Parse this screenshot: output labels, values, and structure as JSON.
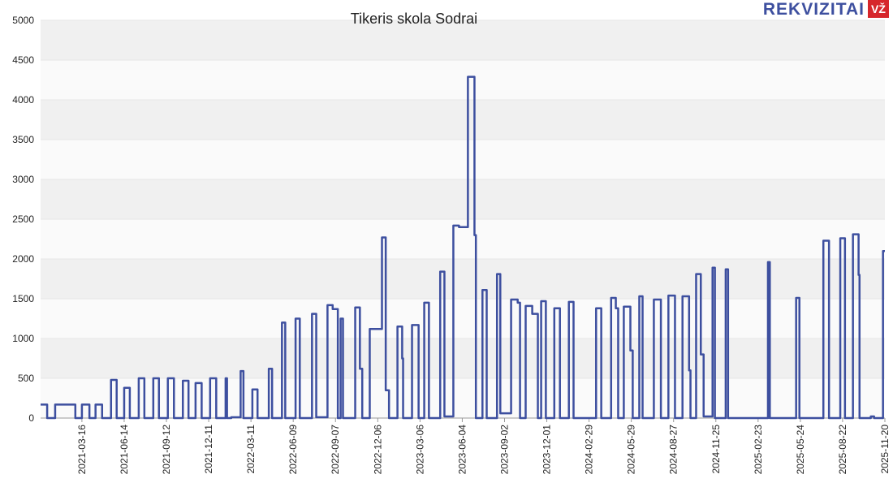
{
  "chart_data": {
    "type": "line",
    "title": "Tikeris skola Sodrai",
    "logo": "REKVIZITAI",
    "logo_badge": "VŽ",
    "x": [
      "2020-12-18",
      "2021-01-01",
      "2021-01-18",
      "2021-03-02",
      "2021-03-16",
      "2021-04-01",
      "2021-04-14",
      "2021-04-28",
      "2021-05-17",
      "2021-05-29",
      "2021-06-14",
      "2021-06-26",
      "2021-07-15",
      "2021-07-27",
      "2021-08-15",
      "2021-08-27",
      "2021-09-15",
      "2021-09-28",
      "2021-10-17",
      "2021-10-29",
      "2021-11-13",
      "2021-11-26",
      "2021-12-14",
      "2021-12-27",
      "2022-01-16",
      "2022-01-19",
      "2022-01-28",
      "2022-02-17",
      "2022-02-23",
      "2022-03-14",
      "2022-03-25",
      "2022-04-18",
      "2022-04-25",
      "2022-05-16",
      "2022-05-23",
      "2022-06-14",
      "2022-06-23",
      "2022-07-19",
      "2022-07-28",
      "2022-08-21",
      "2022-09-01",
      "2022-09-12",
      "2022-09-18",
      "2022-09-23",
      "2022-10-19",
      "2022-10-29",
      "2022-11-03",
      "2022-11-19",
      "2022-12-15",
      "2022-12-23",
      "2022-12-30",
      "2023-01-17",
      "2023-01-27",
      "2023-01-29",
      "2023-02-17",
      "2023-03-03",
      "2023-03-15",
      "2023-03-25",
      "2023-04-18",
      "2023-04-27",
      "2023-05-16",
      "2023-05-28",
      "2023-06-16",
      "2023-06-30",
      "2023-07-03",
      "2023-07-17",
      "2023-07-26",
      "2023-08-17",
      "2023-08-24",
      "2023-09-16",
      "2023-09-30",
      "2023-10-05",
      "2023-10-17",
      "2023-10-31",
      "2023-11-12",
      "2023-11-19",
      "2023-11-29",
      "2023-12-17",
      "2023-12-29",
      "2024-01-17",
      "2024-01-27",
      "2024-03-15",
      "2024-03-26",
      "2024-04-16",
      "2024-04-26",
      "2024-05-01",
      "2024-05-13",
      "2024-05-27",
      "2024-06-01",
      "2024-06-15",
      "2024-06-22",
      "2024-07-16",
      "2024-07-31",
      "2024-08-16",
      "2024-08-30",
      "2024-09-15",
      "2024-09-29",
      "2024-10-02",
      "2024-10-14",
      "2024-10-24",
      "2024-10-30",
      "2024-11-18",
      "2024-11-23",
      "2024-12-16",
      "2024-12-21",
      "2025-03-16",
      "2025-03-20",
      "2025-05-15",
      "2025-05-22",
      "2025-07-12",
      "2025-07-24",
      "2025-08-17",
      "2025-08-27",
      "2025-09-13",
      "2025-09-25",
      "2025-09-27",
      "2025-10-21",
      "2025-10-28",
      "2025-11-16",
      "2025-11-20"
    ],
    "series": [
      {
        "name": "Tikeris skola Sodrai",
        "color": "#3d4f9f",
        "values": [
          170,
          0,
          170,
          0,
          170,
          0,
          170,
          0,
          480,
          0,
          380,
          0,
          500,
          0,
          500,
          0,
          500,
          0,
          470,
          0,
          440,
          0,
          500,
          0,
          500,
          0,
          10,
          590,
          0,
          360,
          0,
          620,
          0,
          1200,
          0,
          1250,
          0,
          1310,
          10,
          1420,
          1370,
          0,
          1250,
          0,
          1390,
          620,
          0,
          1120,
          2270,
          350,
          0,
          1150,
          750,
          0,
          1170,
          0,
          1450,
          0,
          1840,
          20,
          2420,
          2400,
          4290,
          2300,
          0,
          1610,
          0,
          1810,
          60,
          1490,
          1450,
          0,
          1410,
          1310,
          0,
          1470,
          0,
          1380,
          0,
          1460,
          0,
          1380,
          0,
          1510,
          1380,
          0,
          1400,
          850,
          0,
          1530,
          0,
          1490,
          0,
          1540,
          0,
          1530,
          600,
          0,
          1810,
          800,
          20,
          1890,
          0,
          1870,
          0,
          1960,
          0,
          1510,
          0,
          2230,
          0,
          2260,
          0,
          2310,
          1800,
          0,
          20,
          0,
          2100,
          2100
        ]
      }
    ],
    "xlim": [
      "2020-12-18",
      "2025-11-20"
    ],
    "xticks": [
      "2021-03-16",
      "2021-06-14",
      "2021-09-12",
      "2021-12-11",
      "2022-03-11",
      "2022-06-09",
      "2022-09-07",
      "2022-12-06",
      "2023-03-06",
      "2023-06-04",
      "2023-09-02",
      "2023-12-01",
      "2024-02-29",
      "2024-05-29",
      "2024-08-27",
      "2024-11-25",
      "2025-02-23",
      "2025-05-24",
      "2025-08-22",
      "2025-11-20"
    ],
    "ylim": [
      0,
      5000
    ],
    "yticks": [
      0,
      500,
      1000,
      1500,
      2000,
      2500,
      3000,
      3500,
      4000,
      4500,
      5000
    ],
    "grid": true,
    "step": true
  }
}
